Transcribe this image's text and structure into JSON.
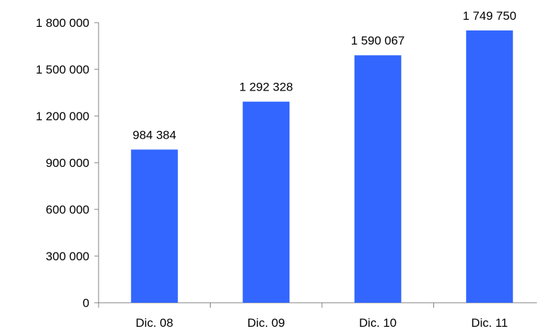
{
  "chart_data": {
    "type": "bar",
    "title": "",
    "xlabel": "",
    "ylabel": "",
    "categories": [
      "Dic. 08",
      "Dic. 09",
      "Dic. 10",
      "Dic. 11"
    ],
    "values": [
      984384,
      1292328,
      1590067,
      1749750
    ],
    "value_labels": [
      "984 384",
      "1 292 328",
      "1 590 067",
      "1 749 750"
    ],
    "ylim": [
      0,
      1800000
    ],
    "yticks": [
      0,
      300000,
      600000,
      900000,
      1200000,
      1500000,
      1800000
    ],
    "ytick_labels": [
      "0",
      "300 000",
      "600 000",
      "900 000",
      "1 200 000",
      "1 500 000",
      "1 800 000"
    ],
    "grid": false,
    "legend": "none",
    "bar_color": "#3366FF"
  }
}
